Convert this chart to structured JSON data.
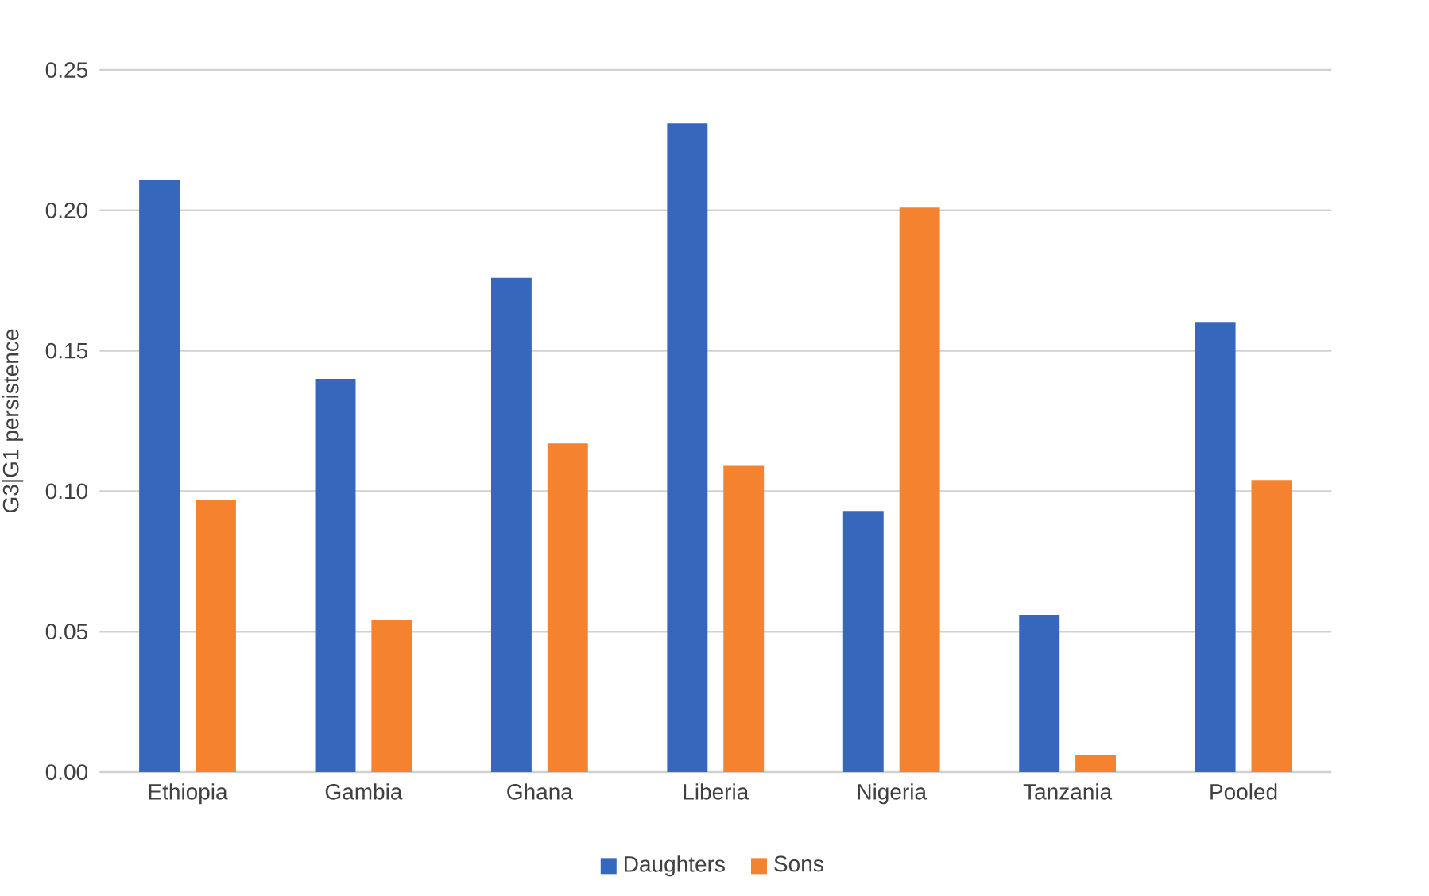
{
  "chart_data": {
    "type": "bar",
    "ylabel": "G3|G1 persistence",
    "categories": [
      "Ethiopia",
      "Gambia",
      "Ghana",
      "Liberia",
      "Nigeria",
      "Tanzania",
      "Pooled"
    ],
    "series": [
      {
        "name": "Daughters",
        "color": "#3568bd",
        "values": [
          0.211,
          0.14,
          0.176,
          0.231,
          0.093,
          0.056,
          0.16
        ]
      },
      {
        "name": "Sons",
        "color": "#f5822f",
        "values": [
          0.097,
          0.054,
          0.117,
          0.109,
          0.201,
          0.006,
          0.104
        ]
      }
    ],
    "ylim": [
      0,
      0.25
    ],
    "yticks": [
      {
        "value": 0,
        "label": "0.00"
      },
      {
        "value": 0.05,
        "label": "0.05"
      },
      {
        "value": 0.1,
        "label": "0.10"
      },
      {
        "value": 0.15,
        "label": "0.15"
      },
      {
        "value": 0.2,
        "label": "0.20"
      },
      {
        "value": 0.25,
        "label": "0.25"
      }
    ],
    "grid": "y",
    "legend": "bottom"
  }
}
